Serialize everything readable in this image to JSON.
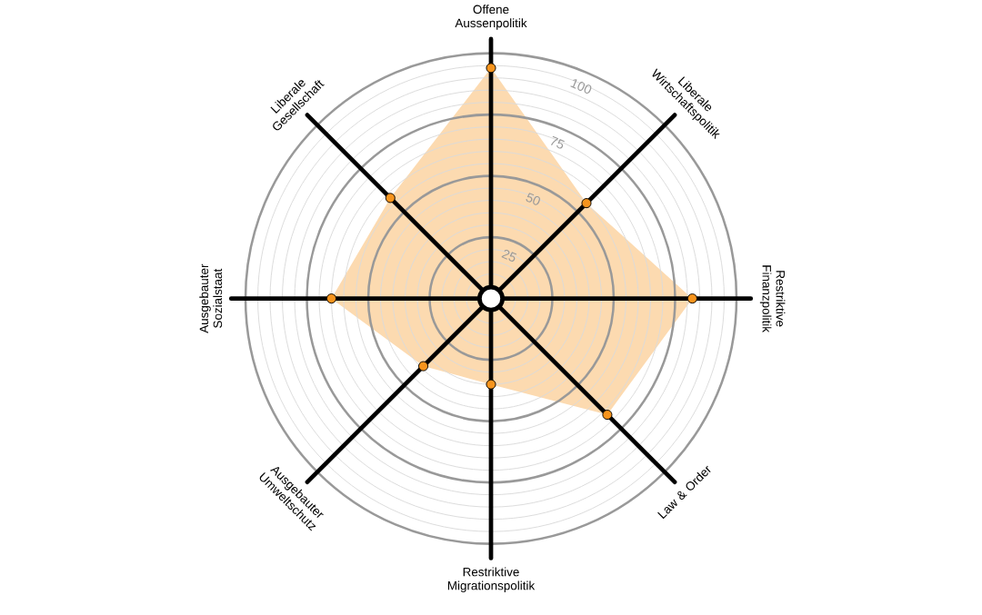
{
  "chart_data": {
    "type": "radar",
    "categories": [
      "Offene Aussenpolitik",
      "Liberale Wirtschaftspolitik",
      "Restriktive Finanzpolitik",
      "Law & Order",
      "Restriktive Migrationspolitik",
      "Ausgebauter Umweltschutz",
      "Ausgebauter Sozialstaat",
      "Liberale Gesellschaft"
    ],
    "series": [
      {
        "color": "#fcdab0",
        "values": [
          94,
          55,
          82,
          67,
          35,
          39,
          65,
          58
        ]
      }
    ],
    "ylim": [
      0,
      100
    ],
    "yticks": [
      25,
      50,
      75,
      100
    ],
    "grid": true,
    "marker": "circle"
  }
}
